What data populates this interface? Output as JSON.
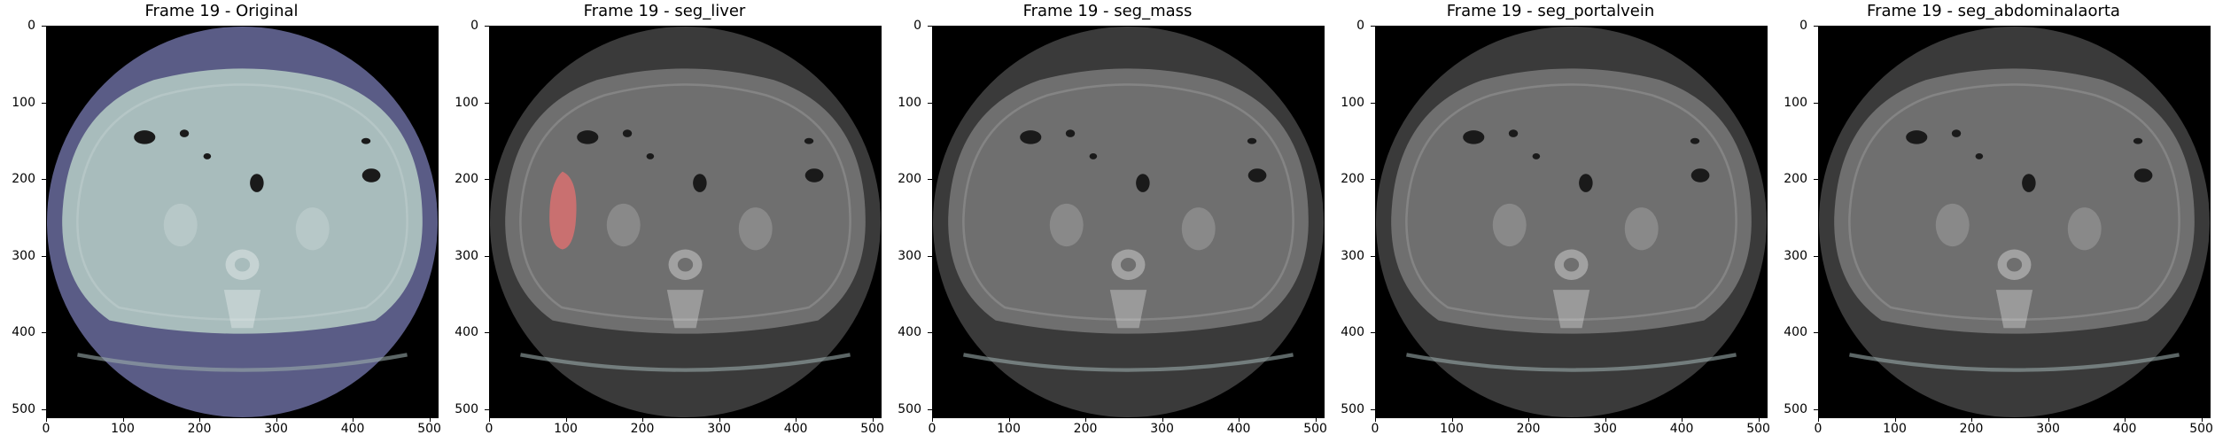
{
  "figure": {
    "panels": [
      {
        "title": "Frame 19 - Original",
        "tint": "#5a5c86",
        "tissue": "#a8bcbc",
        "overlay": null
      },
      {
        "title": "Frame 19 - seg_liver",
        "tint": "#3a3a3a",
        "tissue": "#6f6f6f",
        "overlay": {
          "label": "liver",
          "color": "#e07070"
        }
      },
      {
        "title": "Frame 19 - seg_mass",
        "tint": "#3a3a3a",
        "tissue": "#6f6f6f",
        "overlay": null
      },
      {
        "title": "Frame 19 - seg_portalvein",
        "tint": "#3a3a3a",
        "tissue": "#6f6f6f",
        "overlay": null
      },
      {
        "title": "Frame 19 - seg_abdominalaorta",
        "tint": "#3a3a3a",
        "tissue": "#6f6f6f",
        "overlay": null
      }
    ],
    "yticks": [
      "0",
      "100",
      "200",
      "300",
      "400",
      "500"
    ],
    "xticks": [
      "0",
      "100",
      "200",
      "300",
      "400",
      "500"
    ],
    "image_size": 512
  }
}
